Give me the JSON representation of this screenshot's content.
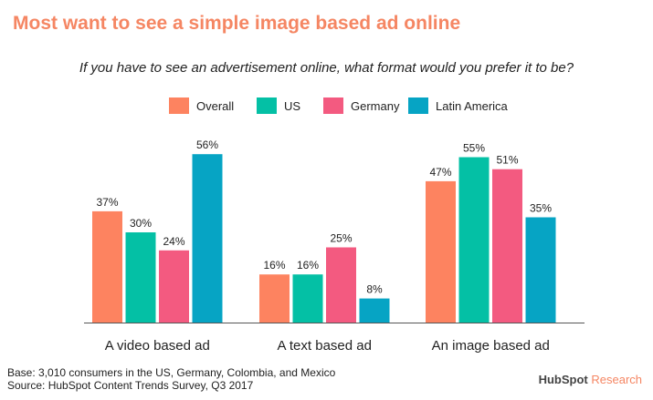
{
  "title": "Most want to see a simple image based ad online",
  "subtitle": "If you have to see an advertisement online, what format would you prefer it to be?",
  "footnotes": {
    "base": "Base: 3,010 consumers in the US, Germany, Colombia, and Mexico",
    "source": "Source: HubSpot Content Trends Survey, Q3 2017"
  },
  "brand": {
    "name": "HubSpot",
    "suffix": " Research"
  },
  "chart_data": {
    "type": "bar",
    "title": "Most want to see a simple image based ad online",
    "subtitle": "If you have to see an advertisement online, what format would you prefer it to be?",
    "categories": [
      "A video based ad",
      "A text based ad",
      "An image based ad"
    ],
    "series": [
      {
        "name": "Overall",
        "color": "#fd8360",
        "values": [
          37,
          16,
          47
        ]
      },
      {
        "name": "US",
        "color": "#04c0a5",
        "values": [
          30,
          16,
          55
        ]
      },
      {
        "name": "Germany",
        "color": "#f35a80",
        "values": [
          24,
          25,
          51
        ]
      },
      {
        "name": "Latin America",
        "color": "#06a4c4",
        "values": [
          56,
          8,
          35
        ]
      }
    ],
    "value_suffix": "%",
    "ylim": [
      0,
      100
    ],
    "grid": false,
    "legend": "top-center"
  }
}
